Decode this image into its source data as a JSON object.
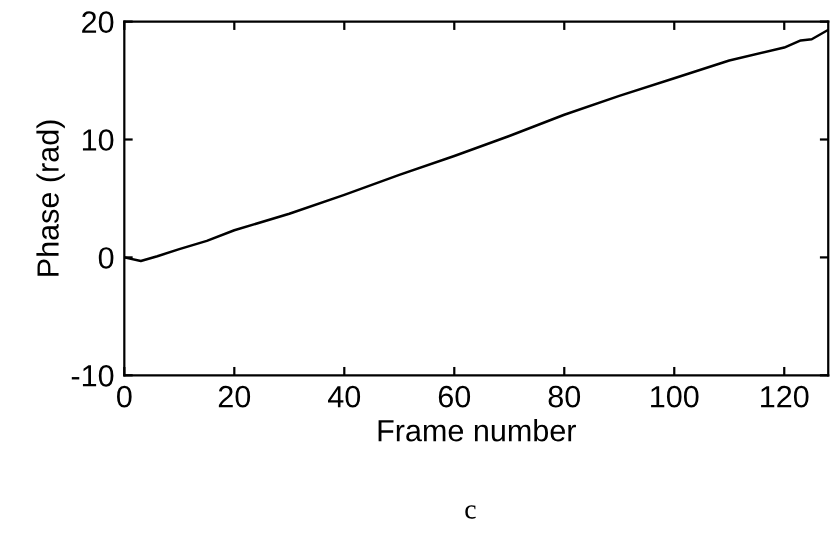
{
  "chart_data": {
    "type": "line",
    "xlabel": "Frame number",
    "ylabel": "Phase (rad)",
    "annotations": [
      "c"
    ],
    "xlim": [
      0,
      128
    ],
    "ylim": [
      -10,
      20
    ],
    "xticks": [
      0,
      20,
      40,
      60,
      80,
      100,
      120
    ],
    "yticks": [
      -10,
      0,
      10,
      20
    ],
    "grid": false,
    "legend": false,
    "series": [
      {
        "color": "#000000",
        "x": [
          0,
          3,
          6,
          10,
          15,
          20,
          30,
          40,
          50,
          60,
          70,
          80,
          90,
          100,
          110,
          120,
          123,
          125,
          128
        ],
        "values": [
          0,
          -0.3,
          0.1,
          0.7,
          1.4,
          2.3,
          3.7,
          5.3,
          7.0,
          8.6,
          10.3,
          12.1,
          13.7,
          15.2,
          16.7,
          17.8,
          18.4,
          18.5,
          19.3
        ]
      }
    ]
  }
}
